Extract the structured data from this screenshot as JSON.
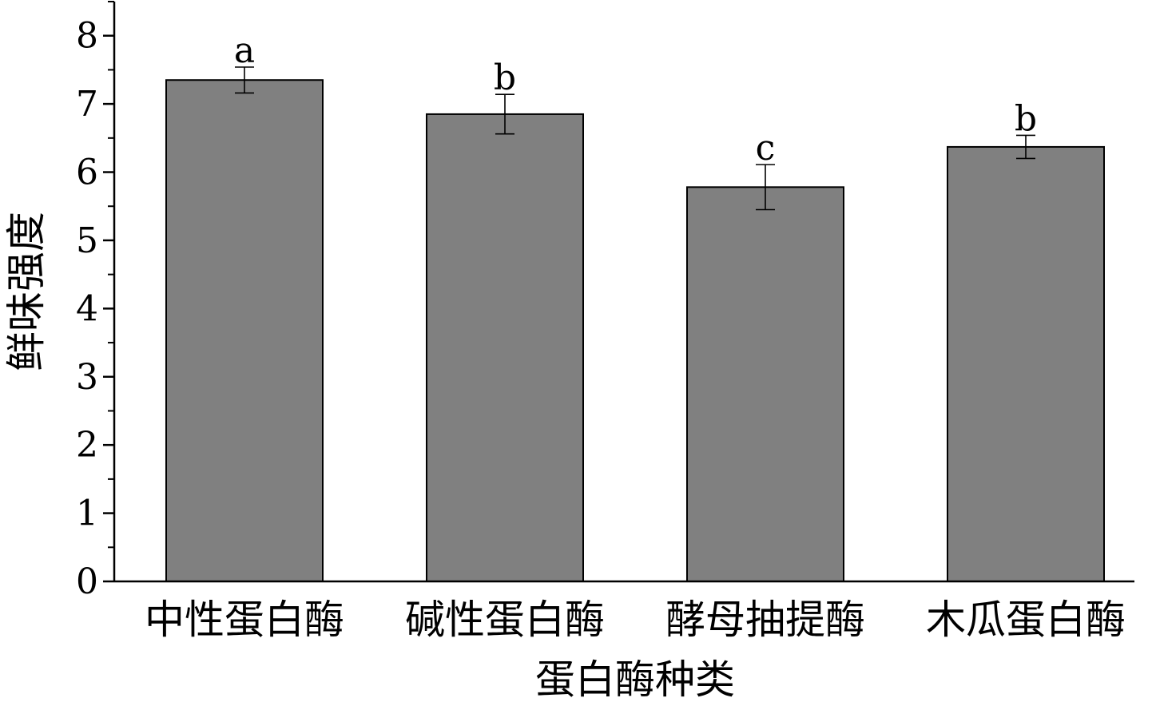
{
  "chart_data": {
    "type": "bar",
    "title": "",
    "xlabel": "蛋白酶种类",
    "ylabel": "鲜味强度",
    "categories": [
      "中性蛋白酶",
      "碱性蛋白酶",
      "酵母抽提酶",
      "木瓜蛋白酶"
    ],
    "values": [
      7.35,
      6.85,
      5.78,
      6.37
    ],
    "errors": [
      0.19,
      0.29,
      0.33,
      0.17
    ],
    "significance_labels": [
      "a",
      "b",
      "c",
      "b"
    ],
    "ylim": [
      0,
      8.5
    ],
    "yticks": [
      "0",
      "1",
      "2",
      "3",
      "4",
      "5",
      "6",
      "7",
      "8"
    ],
    "grid": false,
    "bar_color": "#808080"
  }
}
